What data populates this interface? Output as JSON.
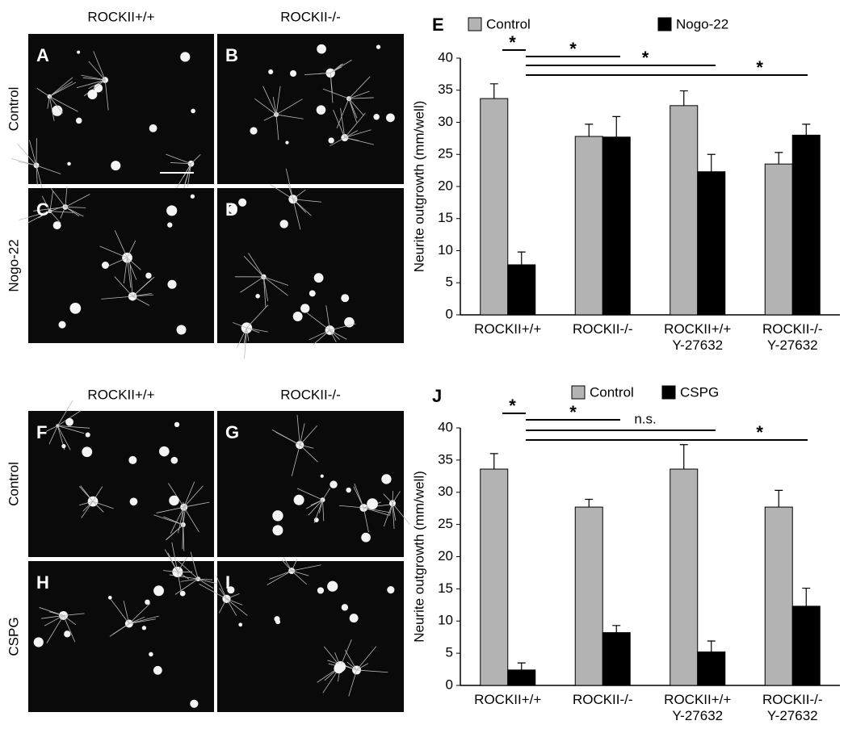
{
  "image_panels": [
    {
      "column_headers": [
        "ROCKII+/+",
        "ROCKII-/-"
      ],
      "row_labels": [
        "Control",
        "Nogo-22"
      ],
      "letters": [
        "A",
        "B",
        "C",
        "D"
      ]
    },
    {
      "column_headers": [
        "ROCKII+/+",
        "ROCKII-/-"
      ],
      "row_labels": [
        "Control",
        "CSPG"
      ],
      "letters": [
        "F",
        "G",
        "H",
        "I"
      ]
    }
  ],
  "chart_data": [
    {
      "type": "bar",
      "panel_label": "E",
      "y_label": "Neurite outgrowth (mm/well)",
      "categories": [
        "ROCKII+/+",
        "ROCKII-/-",
        "ROCKII+/+ Y-27632",
        "ROCKII-/- Y-27632"
      ],
      "series": [
        {
          "name": "Control",
          "color": "#b3b3b3",
          "values": [
            33.7,
            27.8,
            32.6,
            23.5
          ],
          "errors": [
            2.3,
            1.9,
            2.3,
            1.8
          ]
        },
        {
          "name": "Nogo-22",
          "color": "#000000",
          "values": [
            7.8,
            27.7,
            22.3,
            28.0
          ],
          "errors": [
            2.0,
            3.2,
            2.7,
            1.7
          ]
        }
      ],
      "ylim": [
        0,
        40
      ],
      "yticks": [
        0,
        5,
        10,
        15,
        20,
        25,
        30,
        35,
        40
      ],
      "annotations": [
        "*",
        "*",
        "*",
        "*"
      ]
    },
    {
      "type": "bar",
      "panel_label": "J",
      "y_label": "Neurite outgrowth (mm/well)",
      "categories": [
        "ROCKII+/+",
        "ROCKII-/-",
        "ROCKII+/+ Y-27632",
        "ROCKII-/- Y-27632"
      ],
      "series": [
        {
          "name": "Control",
          "color": "#b3b3b3",
          "values": [
            33.6,
            27.7,
            33.6,
            27.7
          ],
          "errors": [
            2.4,
            1.2,
            3.8,
            2.6
          ]
        },
        {
          "name": "CSPG",
          "color": "#000000",
          "values": [
            2.4,
            8.2,
            5.2,
            12.3
          ],
          "errors": [
            1.1,
            1.1,
            1.7,
            2.8
          ]
        }
      ],
      "ylim": [
        0,
        40
      ],
      "yticks": [
        0,
        5,
        10,
        15,
        20,
        25,
        30,
        35,
        40
      ],
      "annotations": [
        "*",
        "*",
        "n.s.",
        "*"
      ]
    }
  ]
}
